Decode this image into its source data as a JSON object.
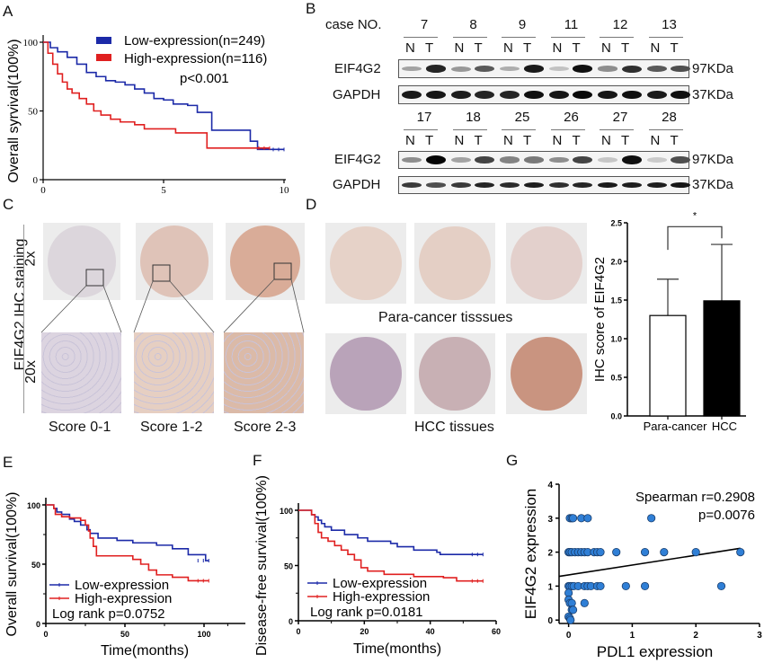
{
  "panel_labels": {
    "A": "A",
    "B": "B",
    "C": "C",
    "D": "D",
    "E": "E",
    "F": "F",
    "G": "G"
  },
  "colors": {
    "low": "#1c2aa8",
    "high": "#e02020",
    "scatter": "#2f7fd6"
  },
  "chart_data": [
    {
      "id": "A",
      "type": "line",
      "subtype": "kaplan-meier",
      "title": "",
      "xlabel": "Time(years)",
      "ylabel": "Overall syrvival(100%)",
      "xlim": [
        0,
        10
      ],
      "ylim": [
        0,
        100
      ],
      "xticks": [
        "0",
        "5",
        "10"
      ],
      "yticks": [
        "0",
        "50",
        "100"
      ],
      "legend": {
        "placement": "top-right",
        "entries": [
          "Low-expression(n=249)",
          "High-expression(n=116)"
        ]
      },
      "annotation": "p<0.001",
      "series": [
        {
          "name": "Low-expression(n=249)",
          "color": "#1c2aa8",
          "x": [
            0,
            0.3,
            0.6,
            1.0,
            1.4,
            1.8,
            2.2,
            2.6,
            3.0,
            3.4,
            3.8,
            4.2,
            4.6,
            5.0,
            5.4,
            6.0,
            6.4,
            6.9,
            7.0,
            7.5,
            8.2,
            8.6,
            8.9,
            9.0,
            10.0
          ],
          "y": [
            100,
            96,
            93,
            89,
            84,
            78,
            75,
            72,
            71,
            69,
            66,
            63,
            59,
            58,
            55,
            54,
            49,
            49,
            36,
            36,
            36,
            28,
            22,
            22,
            22
          ]
        },
        {
          "name": "High-expression(n=116)",
          "color": "#e02020",
          "x": [
            0,
            0.2,
            0.4,
            0.6,
            0.8,
            1.0,
            1.2,
            1.5,
            1.8,
            2.1,
            2.4,
            2.8,
            3.2,
            3.8,
            4.2,
            5.0,
            5.5,
            6.0,
            6.4,
            6.7,
            6.8,
            7.5,
            8.5,
            9.4
          ],
          "y": [
            100,
            92,
            84,
            77,
            71,
            66,
            63,
            59,
            55,
            50,
            47,
            44,
            42,
            40,
            37,
            37,
            34,
            34,
            34,
            34,
            23,
            23,
            23,
            23
          ]
        }
      ]
    },
    {
      "id": "D-bar",
      "type": "bar",
      "title": "",
      "xlabel": "",
      "ylabel": "IHC score of EIF4G2",
      "ylim": [
        0,
        2.5
      ],
      "yticks": [
        "0.0",
        "0.5",
        "1.0",
        "1.5",
        "2.0",
        "2.5"
      ],
      "categories": [
        "Para-cancer",
        "HCC"
      ],
      "values": [
        1.3,
        1.49
      ],
      "errors": [
        0.47,
        0.73
      ],
      "bar_colors": [
        "#ffffff",
        "#000000"
      ],
      "significance": "*"
    },
    {
      "id": "E",
      "type": "line",
      "subtype": "kaplan-meier",
      "xlabel": "Time(months)",
      "ylabel": "Overall survival(100%)",
      "xlim": [
        0,
        125
      ],
      "ylim": [
        0,
        100
      ],
      "xticks": [
        "0",
        "50",
        "100"
      ],
      "yticks": [
        "0",
        "50",
        "100"
      ],
      "legend": {
        "placement": "bottom-left",
        "entries": [
          "Low-expression",
          "High-expression"
        ]
      },
      "annotation": "Log rank p=0.0752",
      "series": [
        {
          "name": "Low-expression",
          "color": "#1c2aa8",
          "x": [
            0,
            5,
            7,
            10,
            15,
            18,
            22,
            26,
            28,
            33,
            45,
            55,
            70,
            80,
            90,
            98,
            101,
            103
          ],
          "y": [
            100,
            97,
            94,
            92,
            88,
            86,
            83,
            79,
            76,
            72,
            70,
            68,
            66,
            63,
            58,
            58,
            53,
            53
          ]
        },
        {
          "name": "High-expression",
          "color": "#e02020",
          "x": [
            0,
            5,
            6,
            10,
            15,
            22,
            25,
            27,
            28,
            30,
            32,
            50,
            55,
            60,
            65,
            70,
            80,
            90,
            103
          ],
          "y": [
            100,
            97,
            92,
            90,
            89,
            87,
            83,
            78,
            72,
            65,
            57,
            57,
            54,
            50,
            45,
            41,
            39,
            36,
            36
          ]
        }
      ]
    },
    {
      "id": "F",
      "type": "line",
      "subtype": "kaplan-meier",
      "xlabel": "Time(months)",
      "ylabel": "Disease-free survival(100%)",
      "xlim": [
        0,
        60
      ],
      "ylim": [
        0,
        100
      ],
      "xticks": [
        "0",
        "20",
        "40",
        "60"
      ],
      "yticks": [
        "0",
        "50",
        "100"
      ],
      "legend": {
        "placement": "bottom-left",
        "entries": [
          "Low-expression",
          "High-expression"
        ]
      },
      "annotation": "Log rank p=0.0181",
      "series": [
        {
          "name": "Low-expression",
          "color": "#1c2aa8",
          "x": [
            0,
            4,
            5,
            6,
            7,
            8,
            10,
            14,
            18,
            21,
            28,
            30,
            35,
            42,
            43,
            56
          ],
          "y": [
            100,
            96,
            94,
            91,
            88,
            85,
            82,
            78,
            75,
            72,
            70,
            67,
            64,
            62,
            60,
            60
          ]
        },
        {
          "name": "High-expression",
          "color": "#e02020",
          "x": [
            0,
            4,
            5,
            6,
            7,
            9,
            11,
            13,
            15,
            17,
            19,
            21,
            26,
            35,
            44,
            48,
            56
          ],
          "y": [
            100,
            96,
            88,
            80,
            75,
            72,
            68,
            64,
            60,
            55,
            48,
            45,
            42,
            40,
            39,
            36,
            36
          ]
        }
      ]
    },
    {
      "id": "G",
      "type": "scatter",
      "xlabel": "PDL1 expression",
      "ylabel": "EIF4G2 expression",
      "xlim": [
        -0.15,
        3
      ],
      "ylim": [
        -0.1,
        4
      ],
      "xticks": [
        "0",
        "1",
        "2",
        "3"
      ],
      "yticks": [
        "0",
        "1",
        "2",
        "3",
        "4"
      ],
      "annotation": [
        "Spearman r=0.2908",
        "p=0.0076"
      ],
      "regression": {
        "slope": 0.29,
        "intercept": 1.33,
        "x_range": [
          -0.15,
          2.7
        ]
      },
      "points": [
        [
          0.02,
          3
        ],
        [
          0.05,
          3
        ],
        [
          0.07,
          3
        ],
        [
          0.2,
          3
        ],
        [
          0.3,
          3
        ],
        [
          1.3,
          3
        ],
        [
          0,
          2
        ],
        [
          0.02,
          2
        ],
        [
          0.05,
          2
        ],
        [
          0.1,
          2
        ],
        [
          0.15,
          2
        ],
        [
          0.2,
          2
        ],
        [
          0.25,
          2
        ],
        [
          0.3,
          2
        ],
        [
          0.4,
          2
        ],
        [
          0.45,
          2
        ],
        [
          0.5,
          2
        ],
        [
          0.75,
          2
        ],
        [
          1.2,
          2
        ],
        [
          1.5,
          2
        ],
        [
          2.0,
          2
        ],
        [
          2.7,
          2
        ],
        [
          0,
          1
        ],
        [
          0.02,
          1
        ],
        [
          0.05,
          1
        ],
        [
          0.08,
          1
        ],
        [
          0.15,
          1
        ],
        [
          0.25,
          1
        ],
        [
          0.3,
          1
        ],
        [
          0.35,
          1
        ],
        [
          0.45,
          1
        ],
        [
          0.5,
          1
        ],
        [
          0.9,
          1
        ],
        [
          1.2,
          1
        ],
        [
          2.4,
          1
        ],
        [
          0,
          0.8
        ],
        [
          0,
          0.6
        ],
        [
          0.02,
          0.5
        ],
        [
          0.05,
          0.5
        ],
        [
          0.25,
          0.5
        ],
        [
          0.05,
          0.3
        ],
        [
          0.07,
          0.3
        ],
        [
          0,
          0.1
        ],
        [
          0.02,
          0.05
        ],
        [
          0.03,
          0
        ]
      ]
    }
  ],
  "blot": {
    "case_label": "case NO.",
    "row1_cases": [
      "7",
      "8",
      "9",
      "11",
      "12",
      "13"
    ],
    "row2_cases": [
      "17",
      "18",
      "25",
      "26",
      "27",
      "28"
    ],
    "lane_labels": [
      "N",
      "T"
    ],
    "protein_target": "EIF4G2",
    "protein_control": "GAPDH",
    "mw_target": "97KDa",
    "mw_control": "37KDa",
    "row1_target_intensity": [
      0.25,
      0.85,
      0.3,
      0.6,
      0.2,
      0.9,
      0.1,
      0.95,
      0.35,
      0.8,
      0.6,
      0.65
    ],
    "row1_control_intensity": [
      0.9,
      0.92,
      0.88,
      0.85,
      0.85,
      0.95,
      0.92,
      0.98,
      0.92,
      0.95,
      0.9,
      0.95
    ],
    "row2_target_intensity": [
      0.35,
      1.0,
      0.25,
      0.7,
      0.4,
      0.45,
      0.35,
      0.7,
      0.08,
      0.95,
      0.06,
      0.65
    ],
    "row2_control_intensity": [
      0.75,
      0.65,
      0.75,
      0.85,
      0.82,
      0.88,
      0.8,
      0.85,
      0.9,
      0.88,
      0.88,
      0.92
    ]
  },
  "ihc": {
    "side_label": "EIF4G2 IHC staining",
    "mag_low": "2x",
    "mag_high": "20x",
    "scores": [
      "Score 0-1",
      "Score 1-2",
      "Score 2-3"
    ]
  },
  "tma": {
    "para_label": "Para-cancer tisssues",
    "hcc_label": "HCC tissues"
  }
}
